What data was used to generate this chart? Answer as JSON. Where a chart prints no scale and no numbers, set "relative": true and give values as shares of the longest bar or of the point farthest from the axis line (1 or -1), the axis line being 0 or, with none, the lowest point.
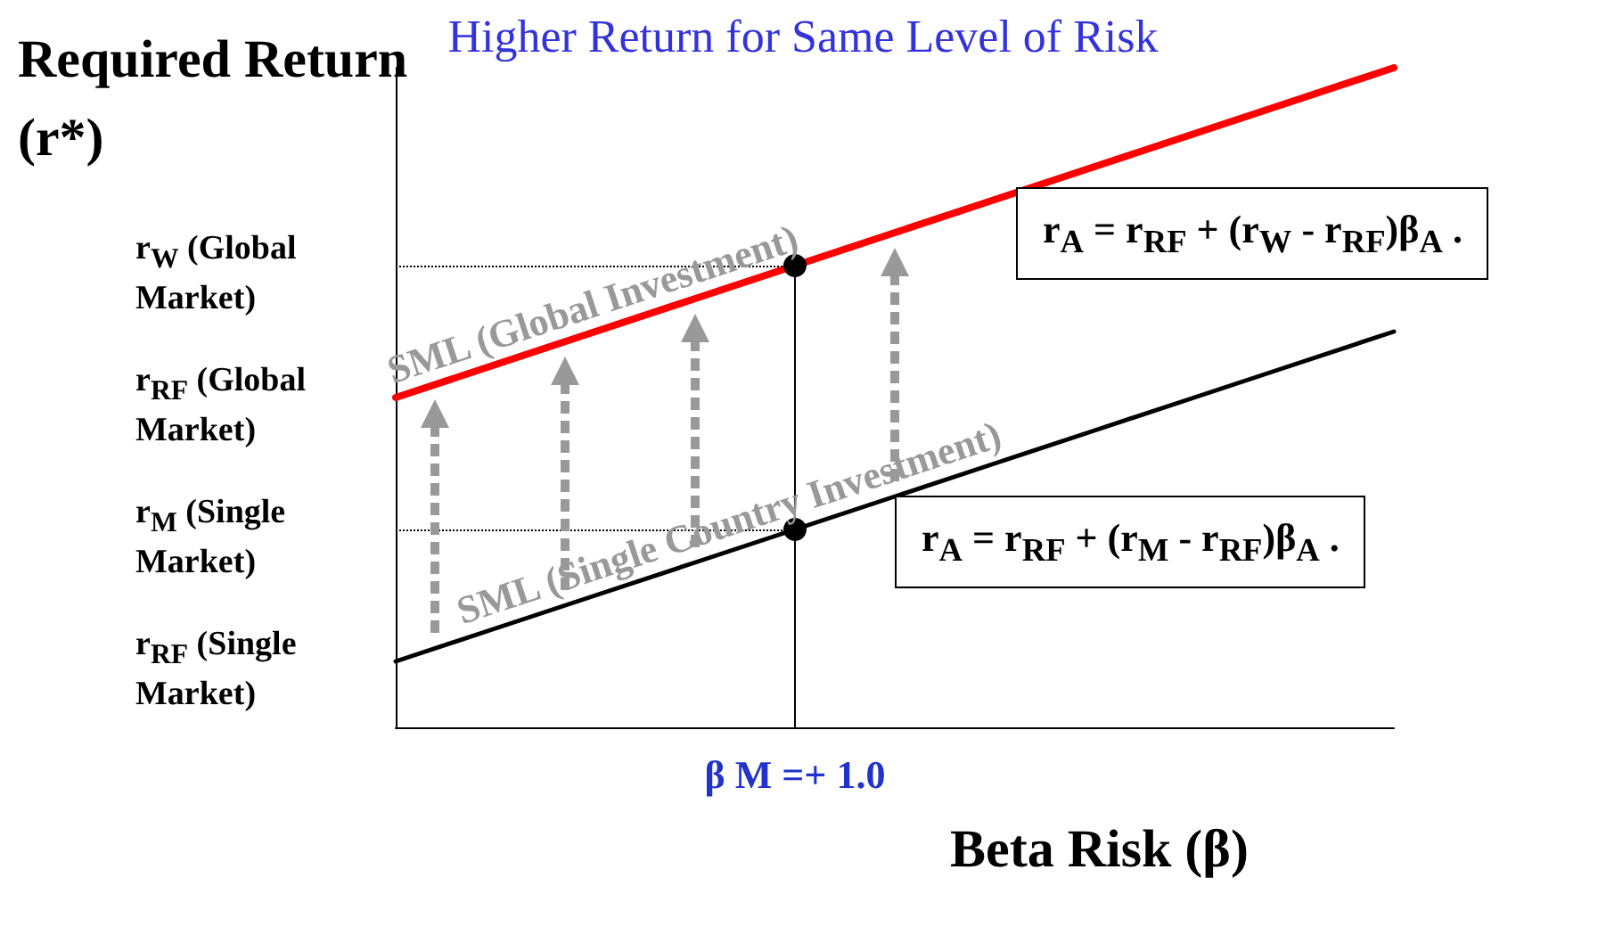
{
  "chart_data": {
    "type": "line",
    "relative": true,
    "title": "Higher Return for Same Level of Risk",
    "ylabel": "Required Return (r*)",
    "xlabel": "Beta Risk (β)",
    "categories": [
      null,
      null,
      null,
      null,
      null,
      null,
      null,
      null,
      null,
      null,
      null
    ],
    "series": [
      {
        "name": "SML (Single Country Investment)",
        "color": "#000000",
        "values": [
          0.1,
          0.15,
          0.2,
          0.25,
          0.3,
          0.35,
          0.4,
          0.45,
          0.5,
          0.55,
          0.6
        ]
      },
      {
        "name": "SML (Global Investment)",
        "color": "#ff0000",
        "values": [
          0.5,
          0.55,
          0.6,
          0.65,
          0.7,
          0.75,
          0.8,
          0.85,
          0.9,
          0.95,
          1.0
        ]
      }
    ],
    "ref_lines": [
      {
        "axis": "y",
        "value": 0.7,
        "color": "#000000",
        "line_style": "dotted"
      },
      {
        "axis": "y",
        "value": 0.3,
        "color": "#000000",
        "line_style": "dotted"
      }
    ],
    "annotations": [
      "r$_{W}$ (Global Market)",
      "r$_{RF}$ (Global Market)",
      "r$_{M}$ (Single Market)",
      "r$_{RF}$ (Single Market)",
      "β M =+ 1.0",
      "r$_{A}$ = r$_{RF}$ +  (r$_{W}$ - r$_{RF}$)β$_{A}$ .",
      "r$_{A}$ = r$_{RF}$ +  (r$_{M}$ - r$_{RF}$)β$_{A}$ ."
    ],
    "legend": false,
    "grid": false,
    "marker": "none",
    "line_style": "solid"
  }
}
